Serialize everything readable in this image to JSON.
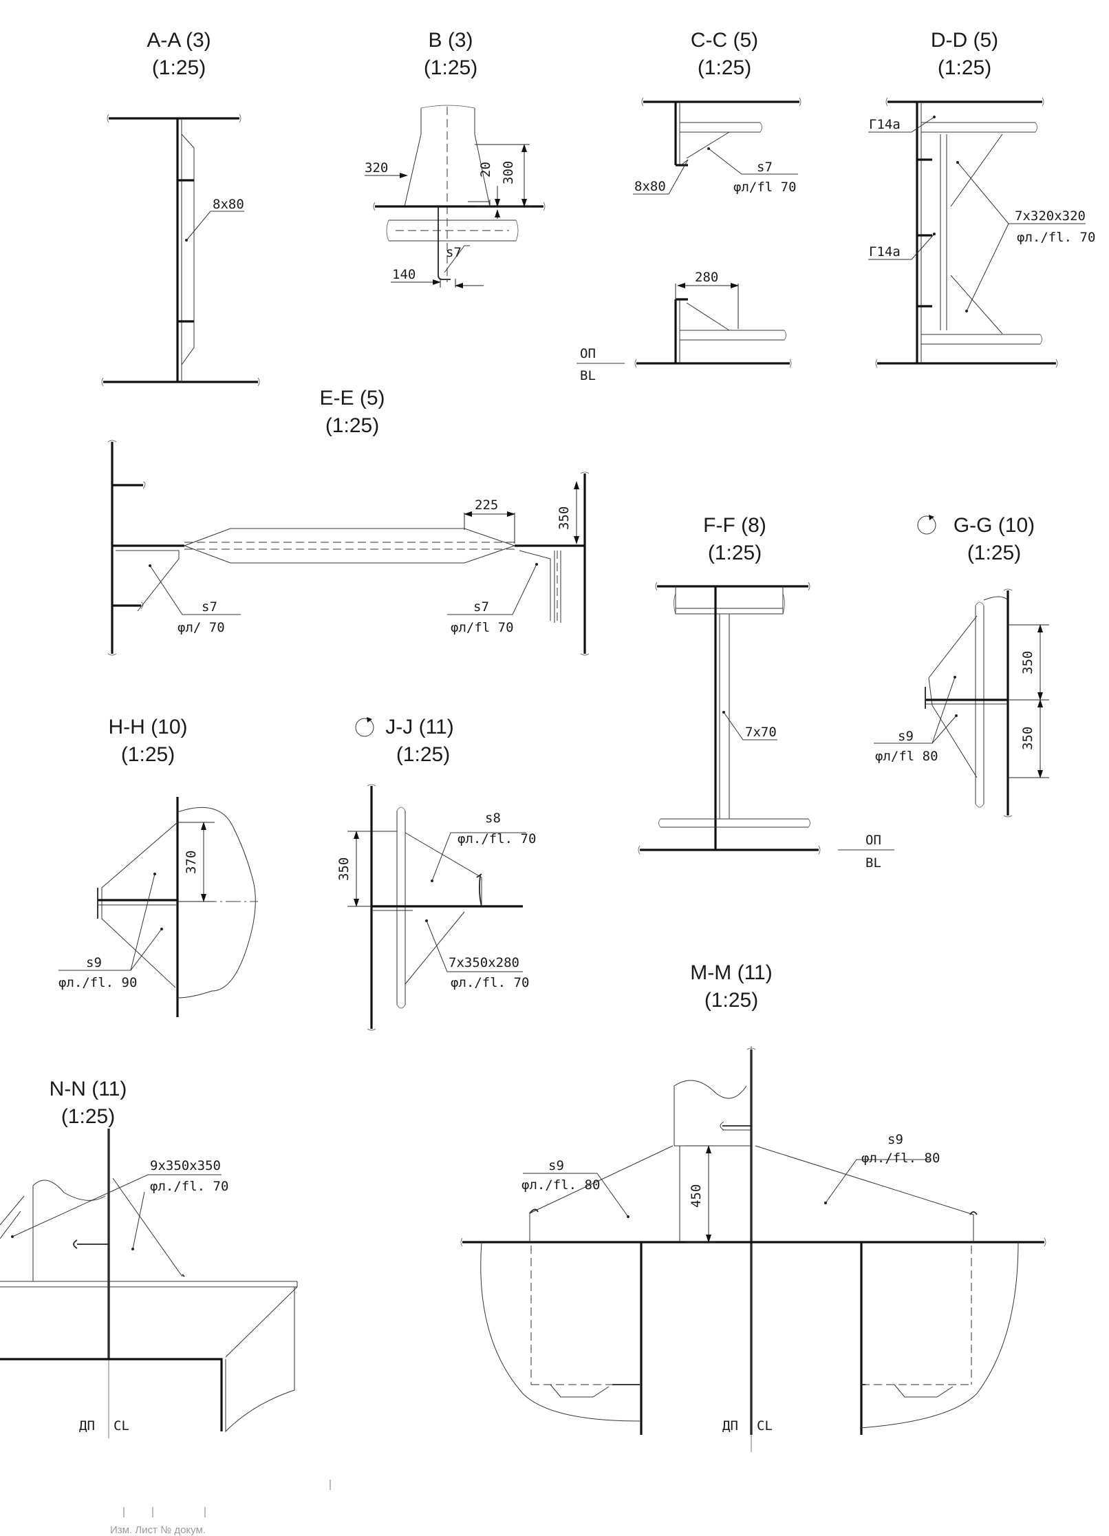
{
  "views": {
    "aa": {
      "title": "A-A (3)",
      "scale": "(1:25)",
      "note": "8x80"
    },
    "b": {
      "title": "B (3)",
      "scale": "(1:25)",
      "dim_320": "320",
      "dim_20": "20",
      "dim_300": "300",
      "dim_140": "140",
      "note": "s7"
    },
    "cc": {
      "title": "C-C (5)",
      "scale": "(1:25)",
      "note_s": "s7",
      "note_fl": "φл/fl 70",
      "note_8x80": "8x80",
      "dim_280": "280",
      "bl_ru": "ОП",
      "bl_en": "BL"
    },
    "dd": {
      "title": "D-D (5)",
      "scale": "(1:25)",
      "profile_top": "Г14а",
      "profile_bot": "Г14а",
      "note_plate": "7x320x320",
      "note_fl": "φл./fl. 70"
    },
    "ee": {
      "title": "E-E (5)",
      "scale": "(1:25)",
      "dim_225": "225",
      "dim_350": "350",
      "note_s_left": "s7",
      "note_fl_left": "φл/ 70",
      "note_s_right": "s7",
      "note_fl_right": "φл/fl 70"
    },
    "ff": {
      "title": "F-F (8)",
      "scale": "(1:25)",
      "note": "7x70",
      "bl_ru": "ОП",
      "bl_en": "BL"
    },
    "gg": {
      "title": "G-G (10)",
      "scale": "(1:25)",
      "dim_350_top": "350",
      "dim_350_bot": "350",
      "note_s": "s9",
      "note_fl": "φл/fl 80"
    },
    "hh": {
      "title": "H-H (10)",
      "scale": "(1:25)",
      "dim_370": "370",
      "note_s": "s9",
      "note_fl": "φл./fl. 90"
    },
    "jj": {
      "title": "J-J (11)",
      "scale": "(1:25)",
      "dim_350": "350",
      "note_s": "s8",
      "note_fl": "φл./fl. 70",
      "note_plate": "7x350x280",
      "note_fl2": "φл./fl. 70"
    },
    "mm": {
      "title": "M-M (11)",
      "scale": "(1:25)",
      "dim_450": "450",
      "note_s_left": "s9",
      "note_fl_left": "φл./fl. 80",
      "note_s_right": "s9",
      "note_fl_right": "φл./fl. 80",
      "cl_ru": "ДП",
      "cl_en": "CL"
    },
    "nn": {
      "title": "N-N (11)",
      "scale": "(1:25)",
      "note_plate": "9x350x350",
      "note_fl": "φл./fl. 70",
      "cl_ru": "ДП",
      "cl_en": "CL"
    }
  },
  "title_block": {
    "text": "Изм. Лист       № докум."
  }
}
